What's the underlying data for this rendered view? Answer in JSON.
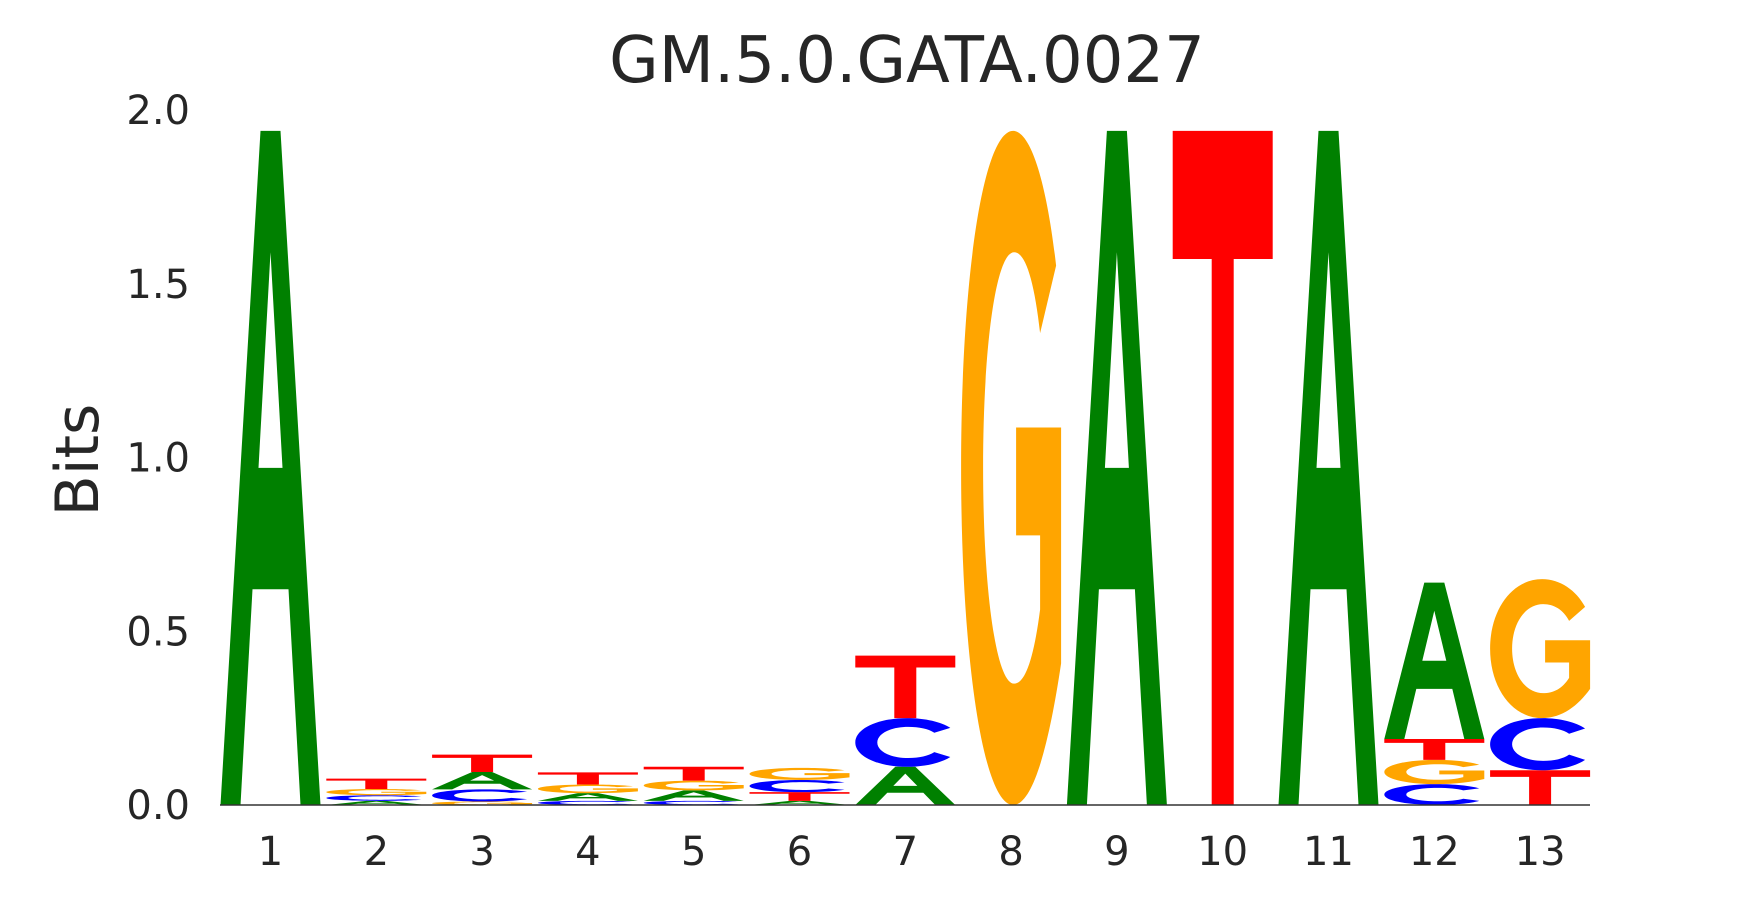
{
  "chart_data": {
    "type": "sequence-logo",
    "title": "GM.5.0.GATA.0027",
    "ylabel": "Bits",
    "xlabel": "",
    "ylim": [
      0,
      2
    ],
    "yticks": [
      "0.0",
      "0.5",
      "1.0",
      "1.5",
      "2.0"
    ],
    "categories": [
      "1",
      "2",
      "3",
      "4",
      "5",
      "6",
      "7",
      "8",
      "9",
      "10",
      "11",
      "12",
      "13"
    ],
    "colors": {
      "A": "#008000",
      "C": "#0000ff",
      "G": "#ffa500",
      "T": "#ff0000"
    },
    "positions": [
      {
        "position": "1",
        "letters": [
          {
            "base": "A",
            "bits": 1.94
          }
        ]
      },
      {
        "position": "2",
        "letters": [
          {
            "base": "A",
            "bits": 0.012
          },
          {
            "base": "C",
            "bits": 0.016
          },
          {
            "base": "G",
            "bits": 0.018
          },
          {
            "base": "T",
            "bits": 0.03
          }
        ]
      },
      {
        "position": "3",
        "letters": [
          {
            "base": "G",
            "bits": 0.01
          },
          {
            "base": "C",
            "bits": 0.035
          },
          {
            "base": "A",
            "bits": 0.05
          },
          {
            "base": "T",
            "bits": 0.05
          }
        ]
      },
      {
        "position": "4",
        "letters": [
          {
            "base": "C",
            "bits": 0.012
          },
          {
            "base": "A",
            "bits": 0.022
          },
          {
            "base": "G",
            "bits": 0.025
          },
          {
            "base": "T",
            "bits": 0.035
          }
        ]
      },
      {
        "position": "5",
        "letters": [
          {
            "base": "C",
            "bits": 0.012
          },
          {
            "base": "A",
            "bits": 0.03
          },
          {
            "base": "G",
            "bits": 0.028
          },
          {
            "base": "T",
            "bits": 0.04
          }
        ]
      },
      {
        "position": "6",
        "letters": [
          {
            "base": "A",
            "bits": 0.012
          },
          {
            "base": "T",
            "bits": 0.025
          },
          {
            "base": "C",
            "bits": 0.035
          },
          {
            "base": "G",
            "bits": 0.035
          }
        ]
      },
      {
        "position": "7",
        "letters": [
          {
            "base": "A",
            "bits": 0.11
          },
          {
            "base": "C",
            "bits": 0.14
          },
          {
            "base": "T",
            "bits": 0.18
          }
        ]
      },
      {
        "position": "8",
        "letters": [
          {
            "base": "G",
            "bits": 1.94
          }
        ]
      },
      {
        "position": "9",
        "letters": [
          {
            "base": "A",
            "bits": 1.94
          }
        ]
      },
      {
        "position": "10",
        "letters": [
          {
            "base": "T",
            "bits": 1.94
          }
        ]
      },
      {
        "position": "11",
        "letters": [
          {
            "base": "A",
            "bits": 1.94
          }
        ]
      },
      {
        "position": "12",
        "letters": [
          {
            "base": "C",
            "bits": 0.06
          },
          {
            "base": "G",
            "bits": 0.07
          },
          {
            "base": "T",
            "bits": 0.06
          },
          {
            "base": "A",
            "bits": 0.45
          }
        ]
      },
      {
        "position": "13",
        "letters": [
          {
            "base": "T",
            "bits": 0.1
          },
          {
            "base": "C",
            "bits": 0.15
          },
          {
            "base": "G",
            "bits": 0.4
          }
        ]
      }
    ]
  }
}
